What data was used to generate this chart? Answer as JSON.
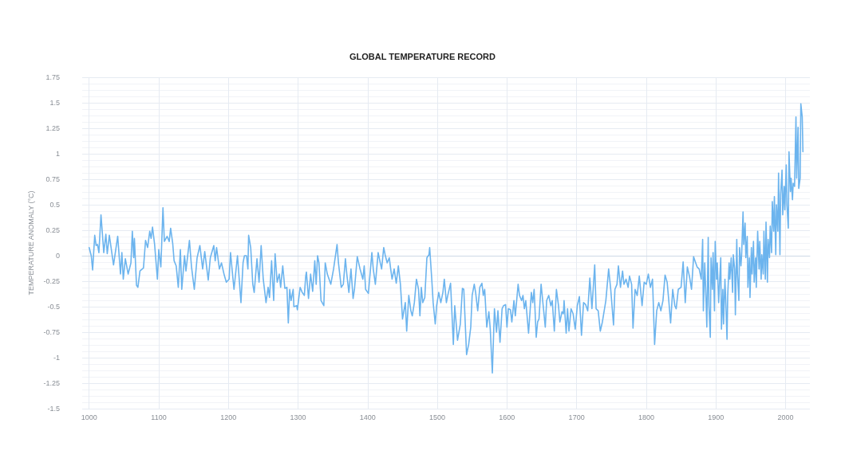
{
  "chart_data": {
    "type": "line",
    "title": "GLOBAL TEMPERATURE RECORD",
    "ylabel": "TEMPERATURE ANOMALY (°C)",
    "xlim": [
      990,
      2035
    ],
    "xticks": [
      1000,
      1100,
      1200,
      1300,
      1400,
      1500,
      1600,
      1700,
      1800,
      1900,
      2000
    ],
    "ylim": [
      -1.5,
      1.75
    ],
    "yticks": [
      -1.5,
      -1.25,
      -1,
      -0.75,
      -0.5,
      -0.25,
      0,
      0.25,
      0.5,
      0.75,
      1,
      1.25,
      1.5,
      1.75
    ],
    "grid": true,
    "marker": "none",
    "line_style": "solid",
    "series": [
      {
        "color": "#6cb4ee",
        "x": [
          1000,
          1003,
          1005,
          1008,
          1010,
          1012,
          1014,
          1017,
          1021,
          1024,
          1026,
          1029,
          1035,
          1041,
          1045,
          1047,
          1049,
          1052,
          1056,
          1060,
          1062,
          1064,
          1065,
          1068,
          1070,
          1073,
          1078,
          1081,
          1084,
          1087,
          1089,
          1091,
          1094,
          1098,
          1100,
          1103,
          1106,
          1108,
          1112,
          1115,
          1117,
          1120,
          1122,
          1125,
          1128,
          1131,
          1133,
          1137,
          1139,
          1144,
          1147,
          1151,
          1155,
          1159,
          1163,
          1166,
          1171,
          1174,
          1179,
          1181,
          1183,
          1187,
          1190,
          1194,
          1197,
          1201,
          1203,
          1207,
          1208,
          1213,
          1218,
          1221,
          1223,
          1226,
          1228,
          1229,
          1232,
          1235,
          1237,
          1241,
          1244,
          1247,
          1250,
          1254,
          1257,
          1259,
          1262,
          1265,
          1267,
          1270,
          1273,
          1275,
          1278,
          1281,
          1284,
          1286,
          1288,
          1290,
          1293,
          1294,
          1298,
          1299,
          1303,
          1306,
          1309,
          1311,
          1312,
          1315,
          1318,
          1321,
          1324,
          1326,
          1328,
          1330,
          1333,
          1337,
          1339,
          1342,
          1347,
          1351,
          1356,
          1358,
          1362,
          1365,
          1368,
          1370,
          1373,
          1376,
          1379,
          1381,
          1385,
          1389,
          1393,
          1395,
          1397,
          1401,
          1406,
          1408,
          1411,
          1415,
          1418,
          1420,
          1423,
          1425,
          1428,
          1431,
          1433,
          1435,
          1438,
          1441,
          1444,
          1447,
          1450,
          1452,
          1454,
          1456,
          1459,
          1462,
          1464,
          1467,
          1470,
          1473,
          1475,
          1477,
          1479,
          1482,
          1485,
          1488,
          1489,
          1492,
          1494,
          1497,
          1499,
          1502,
          1505,
          1508,
          1510,
          1513,
          1515,
          1519,
          1523,
          1525,
          1529,
          1533,
          1536,
          1538,
          1542,
          1545,
          1548,
          1550,
          1553,
          1555,
          1558,
          1561,
          1564,
          1566,
          1568,
          1571,
          1574,
          1576,
          1579,
          1582,
          1585,
          1587,
          1590,
          1593,
          1595,
          1598,
          1600,
          1602,
          1605,
          1607,
          1610,
          1612,
          1616,
          1618,
          1621,
          1623,
          1625,
          1627,
          1631,
          1635,
          1637,
          1639,
          1642,
          1644,
          1646,
          1649,
          1652,
          1655,
          1657,
          1660,
          1663,
          1665,
          1668,
          1671,
          1674,
          1676,
          1679,
          1681,
          1682,
          1685,
          1687,
          1689,
          1692,
          1695,
          1698,
          1701,
          1704,
          1707,
          1710,
          1713,
          1716,
          1719,
          1722,
          1726,
          1728,
          1731,
          1734,
          1737,
          1742,
          1746,
          1749,
          1753,
          1755,
          1758,
          1760,
          1763,
          1766,
          1768,
          1771,
          1774,
          1776,
          1779,
          1781,
          1784,
          1787,
          1790,
          1794,
          1797,
          1800,
          1803,
          1806,
          1809,
          1812,
          1815,
          1818,
          1821,
          1824,
          1827,
          1830,
          1832,
          1835,
          1838,
          1841,
          1843,
          1846,
          1850,
          1853,
          1856,
          1859,
          1862,
          1865,
          1868,
          1870,
          1873,
          1876,
          1879,
          1881,
          1882,
          1884,
          1886,
          1887,
          1889,
          1890,
          1892,
          1893,
          1895,
          1896,
          1898,
          1899,
          1901,
          1902,
          1904,
          1905,
          1907,
          1908,
          1910,
          1911,
          1913,
          1914,
          1916,
          1917,
          1919,
          1920,
          1922,
          1924,
          1925,
          1927,
          1928,
          1930,
          1931,
          1933,
          1934,
          1936,
          1937,
          1939,
          1940,
          1942,
          1943,
          1945,
          1946,
          1948,
          1949,
          1951,
          1952,
          1954,
          1955,
          1957,
          1958,
          1960,
          1962,
          1963,
          1965,
          1966,
          1968,
          1969,
          1971,
          1972,
          1974,
          1975,
          1977,
          1978,
          1980,
          1981,
          1983,
          1984,
          1986,
          1987,
          1989,
          1990,
          1992,
          1993,
          1995,
          1996,
          1998,
          1999,
          2001,
          2002,
          2004,
          2005,
          2007,
          2008,
          2010,
          2011,
          2013,
          2015,
          2016,
          2018,
          2019,
          2021,
          2022,
          2024,
          2025
        ],
        "values": [
          0.08,
          0,
          -0.14,
          0.2,
          0.1,
          0.11,
          0.03,
          0.4,
          0.03,
          0.21,
          0.02,
          0.2,
          -0.09,
          0.19,
          -0.18,
          0.03,
          -0.23,
          -0.03,
          -0.18,
          -0.07,
          0.24,
          -0.02,
          0.17,
          -0.29,
          -0.31,
          -0.15,
          -0.12,
          0.15,
          0.08,
          0.24,
          0.17,
          0.28,
          0.11,
          -0.23,
          0.06,
          -0.11,
          0.47,
          0.14,
          0.19,
          0.14,
          0.27,
          0.12,
          -0.05,
          -0.1,
          -0.31,
          0.06,
          -0.33,
          0,
          -0.15,
          0.15,
          -0.11,
          -0.33,
          -0.02,
          0.1,
          -0.13,
          0.04,
          -0.24,
          -0.02,
          0.1,
          -0.05,
          0.08,
          -0.13,
          -0.07,
          -0.19,
          -0.26,
          -0.23,
          0.03,
          -0.26,
          -0.33,
          0,
          -0.46,
          -0.07,
          0,
          0,
          -0.13,
          0.2,
          0.08,
          -0.28,
          -0.36,
          -0.03,
          -0.26,
          0.1,
          -0.23,
          -0.46,
          -0.31,
          -0.41,
          -0.05,
          -0.44,
          0.02,
          -0.26,
          -0.18,
          -0.31,
          -0.1,
          -0.32,
          -0.31,
          -0.66,
          -0.33,
          -0.44,
          -0.33,
          -0.5,
          -0.49,
          -0.53,
          -0.31,
          -0.36,
          -0.39,
          -0.2,
          -0.16,
          -0.42,
          -0.18,
          -0.35,
          -0.05,
          -0.28,
          0,
          -0.07,
          -0.44,
          -0.49,
          -0.07,
          -0.18,
          -0.28,
          -0.13,
          0.11,
          -0.07,
          -0.31,
          -0.28,
          -0.03,
          -0.18,
          -0.36,
          -0.13,
          -0.42,
          -0.33,
          -0.01,
          -0.13,
          -0.23,
          -0.1,
          -0.33,
          -0.37,
          0.03,
          -0.13,
          -0.28,
          0.03,
          -0.07,
          -0.13,
          0.08,
          0.01,
          -0.07,
          -0.02,
          -0.13,
          -0.23,
          -0.13,
          -0.27,
          -0.1,
          -0.28,
          -0.62,
          -0.54,
          -0.46,
          -0.74,
          -0.39,
          -0.54,
          -0.59,
          -0.46,
          -0.23,
          -0.33,
          -0.59,
          -0.31,
          -0.46,
          -0.41,
          -0.02,
          0.01,
          0.08,
          -0.23,
          -0.46,
          -0.67,
          -0.49,
          -0.36,
          -0.46,
          -0.36,
          -0.23,
          -0.46,
          -0.39,
          -0.27,
          -0.87,
          -0.49,
          -0.83,
          -0.67,
          -0.32,
          -0.33,
          -0.97,
          -0.87,
          -0.7,
          -0.39,
          -0.28,
          -0.36,
          -0.54,
          -0.31,
          -0.27,
          -0.39,
          -0.33,
          -0.7,
          -0.55,
          -0.72,
          -1.15,
          -0.52,
          -0.75,
          -0.54,
          -0.85,
          -0.52,
          -0.49,
          -0.48,
          -0.7,
          -0.52,
          -0.53,
          -0.65,
          -0.44,
          -0.59,
          -0.28,
          -0.39,
          -0.44,
          -0.39,
          -0.52,
          -0.44,
          -0.76,
          -0.36,
          -0.46,
          -0.33,
          -0.8,
          -0.65,
          -0.62,
          -0.28,
          -0.49,
          -0.7,
          -0.44,
          -0.39,
          -0.49,
          -0.44,
          -0.74,
          -0.33,
          -0.49,
          -0.65,
          -0.55,
          -0.57,
          -0.44,
          -0.76,
          -0.52,
          -0.74,
          -0.52,
          -0.57,
          -0.72,
          -0.49,
          -0.4,
          -0.78,
          -0.46,
          -0.48,
          -0.54,
          -0.22,
          -0.52,
          -0.09,
          -0.52,
          -0.54,
          -0.74,
          -0.65,
          -0.44,
          -0.13,
          -0.33,
          -0.68,
          -0.33,
          -0.28,
          -0.1,
          -0.31,
          -0.15,
          -0.28,
          -0.23,
          -0.31,
          -0.2,
          -0.28,
          -0.71,
          -0.33,
          -0.39,
          -0.2,
          -0.49,
          -0.26,
          -0.28,
          -0.18,
          -0.31,
          -0.23,
          -0.87,
          -0.54,
          -0.46,
          -0.54,
          -0.44,
          -0.19,
          -0.26,
          -0.41,
          -0.66,
          -0.33,
          -0.49,
          -0.52,
          -0.33,
          -0.31,
          -0.06,
          -0.46,
          -0.11,
          -0.2,
          -0.33,
          -0.01,
          -0.05,
          -0.11,
          -0.13,
          -0.23,
          0.16,
          -0.54,
          -0.07,
          -0.46,
          -0.7,
          0.18,
          -0.49,
          -0.8,
          -0.02,
          -0.33,
          0.03,
          -0.54,
          0.14,
          -0.23,
          -0.07,
          -0.46,
          -0.31,
          -0.02,
          -0.72,
          -0.33,
          -0.67,
          -0.23,
          -0.41,
          -0.82,
          -0.39,
          -0.07,
          -0.23,
          -0.02,
          -0.36,
          0.01,
          -0.13,
          -0.58,
          0.16,
          -0.18,
          -0.44,
          0.08,
          -0.1,
          0.01,
          0.43,
          0.11,
          0.32,
          -0.02,
          0.19,
          -0.31,
          -0.02,
          -0.41,
          0.08,
          -0.18,
          0.14,
          -0.26,
          -0.02,
          -0.31,
          0.24,
          -0.13,
          0.14,
          -0.23,
          0.01,
          -0.18,
          0.24,
          -0.23,
          0.33,
          -0.26,
          0.16,
          -0.02,
          0.29,
          0.03,
          0.53,
          0.24,
          0.58,
          0.01,
          0.5,
          0.24,
          0.81,
          0.01,
          0.6,
          0.84,
          0.4,
          0.68,
          0.45,
          0.89,
          0.5,
          0.27,
          1.02,
          0.63,
          0.76,
          0.55,
          0.71,
          0.68,
          1.36,
          0.76,
          1.26,
          0.66,
          0.76,
          1.49,
          1.36,
          1.02
        ]
      }
    ]
  }
}
